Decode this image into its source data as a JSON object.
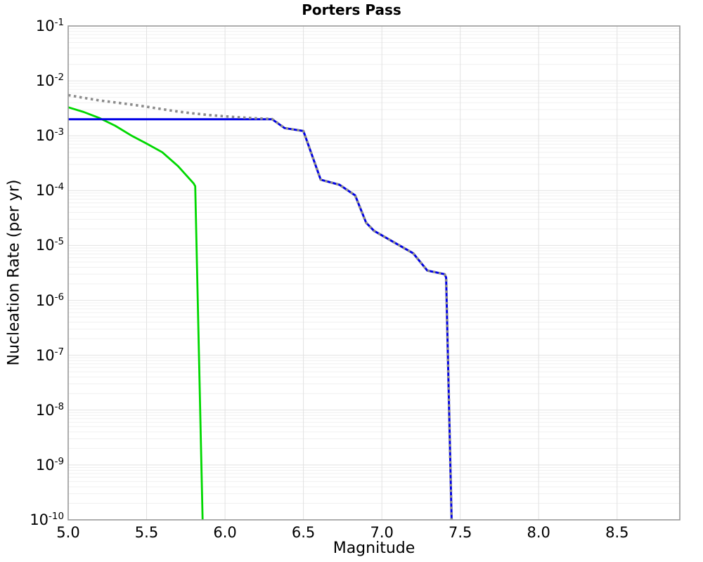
{
  "title": "Porters Pass",
  "axes": {
    "xlabel": "Magnitude",
    "ylabel": "Nucleation Rate (per yr)",
    "x_tick_labels": [
      "5.0",
      "5.5",
      "6.0",
      "6.5",
      "7.0",
      "7.5",
      "8.0",
      "8.5"
    ],
    "x_tick_values": [
      5.0,
      5.5,
      6.0,
      6.5,
      7.0,
      7.5,
      8.0,
      8.5
    ],
    "y_tick_base": "10",
    "y_tick_exponents": [
      -1,
      -2,
      -3,
      -4,
      -5,
      -6,
      -7,
      -8,
      -9,
      -10
    ]
  },
  "chart_data": {
    "type": "line",
    "title": "Porters Pass",
    "xlabel": "Magnitude",
    "ylabel": "Nucleation Rate (per yr)",
    "xlim": [
      5.0,
      8.9
    ],
    "ylim": [
      1e-10,
      0.1
    ],
    "y_scale": "log",
    "grid": true,
    "legend_position": "none",
    "colors": {
      "grid_minor": "#f0f0f0",
      "grid_major": "#e2e2e2",
      "axis_frame": "#999999",
      "background": "#ffffff"
    },
    "series": [
      {
        "name": "green-solid",
        "style": "solid",
        "color": "#00d800",
        "width": 2.8,
        "points": [
          [
            5.0,
            0.0033
          ],
          [
            5.1,
            0.0027
          ],
          [
            5.2,
            0.0021
          ],
          [
            5.3,
            0.00152
          ],
          [
            5.4,
            0.00102
          ],
          [
            5.5,
            0.00072
          ],
          [
            5.6,
            0.0005
          ],
          [
            5.7,
            0.00028
          ],
          [
            5.8,
            0.000135
          ],
          [
            5.81,
            0.00012
          ],
          [
            5.857,
            1e-10
          ]
        ]
      },
      {
        "name": "blue-solid",
        "style": "solid",
        "color": "#0000e6",
        "width": 3,
        "points": [
          [
            5.0,
            0.002
          ],
          [
            6.3,
            0.002
          ],
          [
            6.38,
            0.00138
          ],
          [
            6.5,
            0.00122
          ],
          [
            6.61,
            0.000158
          ],
          [
            6.73,
            0.000128
          ],
          [
            6.83,
            8.2e-05
          ],
          [
            6.9,
            2.6e-05
          ],
          [
            6.95,
            1.85e-05
          ],
          [
            7.1,
            1.05e-05
          ],
          [
            7.2,
            7.2e-06
          ],
          [
            7.29,
            3.5e-06
          ],
          [
            7.4,
            3e-06
          ],
          [
            7.41,
            2.6e-06
          ],
          [
            7.445,
            1e-10
          ]
        ]
      },
      {
        "name": "gray-dotted",
        "style": "dotted",
        "color": "#8c8c8c",
        "width": 3.6,
        "points": [
          [
            5.0,
            0.0055
          ],
          [
            5.1,
            0.0049
          ],
          [
            5.2,
            0.0044
          ],
          [
            5.3,
            0.00405
          ],
          [
            5.4,
            0.00372
          ],
          [
            5.5,
            0.00338
          ],
          [
            5.6,
            0.00305
          ],
          [
            5.7,
            0.00276
          ],
          [
            5.8,
            0.00255
          ],
          [
            5.9,
            0.00238
          ],
          [
            6.0,
            0.00226
          ],
          [
            6.1,
            0.00216
          ],
          [
            6.2,
            0.00208
          ],
          [
            6.3,
            0.00202
          ],
          [
            6.38,
            0.00138
          ],
          [
            6.5,
            0.00122
          ],
          [
            6.61,
            0.000158
          ],
          [
            6.73,
            0.000128
          ],
          [
            6.83,
            8.2e-05
          ],
          [
            6.9,
            2.6e-05
          ],
          [
            6.95,
            1.85e-05
          ],
          [
            7.1,
            1.05e-05
          ],
          [
            7.2,
            7.2e-06
          ],
          [
            7.29,
            3.5e-06
          ],
          [
            7.4,
            3e-06
          ],
          [
            7.41,
            2.6e-06
          ],
          [
            7.445,
            1e-10
          ]
        ]
      }
    ]
  }
}
